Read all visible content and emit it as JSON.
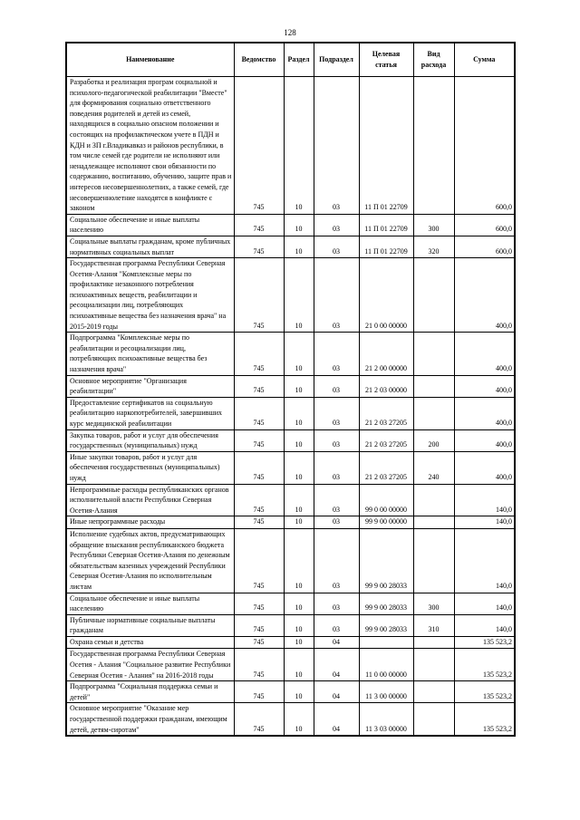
{
  "page_number": "128",
  "headers": [
    "Наименование",
    "Ведомство",
    "Раздел",
    "Подраздел",
    "Целевая статья",
    "Вид расхода",
    "Сумма"
  ],
  "rows": [
    {
      "name": "Разработка и реализация програм социальной и психолого-педагогической реабилитации \"Вместе\" для формирования социально ответственного поведения родителей и детей из семей, находящихся в социально опасном положении и состоящих на профилактическом учете в ПДН и КДН и ЗП г.Владикавказ и районов республики, в том числе семей где родители не исполняют или ненадлежащее исполняют свои обязанности по содержанию, воспитанию, обучению, защите прав и интересов несовершеннолетних, а также семей, где несовершеннолетние находятся в конфликте с законом",
      "ved": "745",
      "razdel": "10",
      "podrazdel": "03",
      "cs": "11 П 01 22709",
      "vr": "",
      "sum": "600,0"
    },
    {
      "name": "Социальное обеспечение и иные выплаты населению",
      "ved": "745",
      "razdel": "10",
      "podrazdel": "03",
      "cs": "11 П 01 22709",
      "vr": "300",
      "sum": "600,0"
    },
    {
      "name": "Социальные выплаты гражданам, кроме публичных нормативных социальных выплат",
      "ved": "745",
      "razdel": "10",
      "podrazdel": "03",
      "cs": "11 П 01 22709",
      "vr": "320",
      "sum": "600,0"
    },
    {
      "name": "Государственная программа Республики Северная Осетия-Алания \"Комплексные меры по профилактике незаконного потребления психоактивных веществ, реабилитации и ресоциализации лиц, потребляющих психоактивные вещества без назначения врача\" на 2015-2019 годы",
      "ved": "745",
      "razdel": "10",
      "podrazdel": "03",
      "cs": "21 0 00 00000",
      "vr": "",
      "sum": "400,0"
    },
    {
      "name": "Подпрограмма \"Комплексные меры по реабилитации и ресоциализации лиц, потребляющих психоактивные вещества без назначения врача\"",
      "ved": "745",
      "razdel": "10",
      "podrazdel": "03",
      "cs": "21 2 00 00000",
      "vr": "",
      "sum": "400,0"
    },
    {
      "name": "Основное мероприятие \"Организация реабилитации\"",
      "ved": "745",
      "razdel": "10",
      "podrazdel": "03",
      "cs": "21 2 03 00000",
      "vr": "",
      "sum": "400,0"
    },
    {
      "name": "Предоставление сертификатов на социальную реабилитацию наркопотребителей, завершивших курс медицинской реабилитации",
      "ved": "745",
      "razdel": "10",
      "podrazdel": "03",
      "cs": "21 2 03 27205",
      "vr": "",
      "sum": "400,0"
    },
    {
      "name": "Закупка товаров, работ и услуг для обеспечения государственных (муниципальных) нужд",
      "ved": "745",
      "razdel": "10",
      "podrazdel": "03",
      "cs": "21 2 03 27205",
      "vr": "200",
      "sum": "400,0"
    },
    {
      "name": "Иные закупки товаров, работ и услуг для обеспечения государственных (муниципальных) нужд",
      "ved": "745",
      "razdel": "10",
      "podrazdel": "03",
      "cs": "21 2 03 27205",
      "vr": "240",
      "sum": "400,0"
    },
    {
      "name": "Непрограммные расходы республиканских органов исполнительной власти Республики Северная Осетия-Алания",
      "ved": "745",
      "razdel": "10",
      "podrazdel": "03",
      "cs": "99 0 00 00000",
      "vr": "",
      "sum": "140,0"
    },
    {
      "name": "Иные непрограммные расходы",
      "ved": "745",
      "razdel": "10",
      "podrazdel": "03",
      "cs": "99 9 00 00000",
      "vr": "",
      "sum": "140,0"
    },
    {
      "name": "Исполнение судебных актов, предусматривающих обращение взыскания республиканского бюджета Республики Северная Осетия-Алания по денежным обязательствам казенных учреждений Республики Северная Осетия-Алания по исполнительным листам",
      "ved": "745",
      "razdel": "10",
      "podrazdel": "03",
      "cs": "99 9 00 28033",
      "vr": "",
      "sum": "140,0"
    },
    {
      "name": "Социальное обеспечение и иные выплаты населению",
      "ved": "745",
      "razdel": "10",
      "podrazdel": "03",
      "cs": "99 9 00 28033",
      "vr": "300",
      "sum": "140,0"
    },
    {
      "name": "Публичные нормативные социальные выплаты гражданам",
      "ved": "745",
      "razdel": "10",
      "podrazdel": "03",
      "cs": "99 9 00 28033",
      "vr": "310",
      "sum": "140,0"
    },
    {
      "name": "Охрана семьи и детства",
      "ved": "745",
      "razdel": "10",
      "podrazdel": "04",
      "cs": "",
      "vr": "",
      "sum": "135 523,2"
    },
    {
      "name": "Государственная программа Республики Северная Осетия - Алания \"Социальное развитие Республики Северная Осетия - Алания\" на 2016-2018 годы",
      "ved": "745",
      "razdel": "10",
      "podrazdel": "04",
      "cs": "11 0 00 00000",
      "vr": "",
      "sum": "135 523,2"
    },
    {
      "name": "Подпрограмма \"Социальная поддержка семьи и детей\"",
      "ved": "745",
      "razdel": "10",
      "podrazdel": "04",
      "cs": "11 3 00 00000",
      "vr": "",
      "sum": "135 523,2"
    },
    {
      "name": "Основное мероприятие \"Оказание мер государственной поддержки гражданам, имеющим детей, детям-сиротам\"",
      "ved": "745",
      "razdel": "10",
      "podrazdel": "04",
      "cs": "11 3 03 00000",
      "vr": "",
      "sum": "135 523,2"
    }
  ]
}
